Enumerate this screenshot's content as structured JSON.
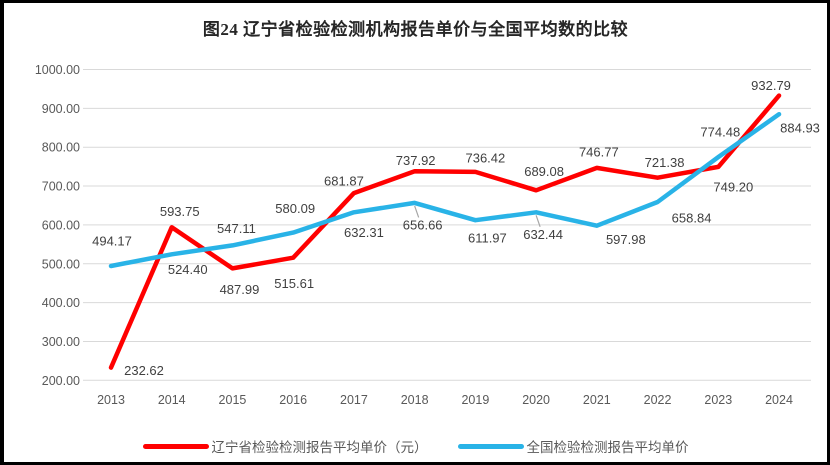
{
  "title": "图24 辽宁省检验检测机构报告单价与全国平均数的比较",
  "chart_data": {
    "type": "line",
    "categories": [
      "2013",
      "2014",
      "2015",
      "2016",
      "2017",
      "2018",
      "2019",
      "2020",
      "2021",
      "2022",
      "2023",
      "2024"
    ],
    "series": [
      {
        "name": "辽宁省检验检测报告平均单价（元）",
        "color": "#FF0000",
        "values": [
          232.62,
          593.75,
          487.99,
          515.61,
          681.87,
          737.92,
          736.42,
          689.08,
          746.77,
          721.38,
          749.2,
          932.79
        ]
      },
      {
        "name": "全国检验检测报告平均单价",
        "color": "#29B3E7",
        "values": [
          494.17,
          524.4,
          547.11,
          580.09,
          632.31,
          656.66,
          611.97,
          632.44,
          597.98,
          658.84,
          774.48,
          884.93
        ]
      }
    ],
    "ylim": [
      200,
      1000
    ],
    "ytick_step": 100,
    "ytick_decimals": 2,
    "grid": true,
    "legend_position": "bottom",
    "data_labels": true
  },
  "colors": {
    "grid": "#D9D9D9",
    "axis_text": "#595959",
    "data_label_text": "#404040",
    "title_text": "#262626",
    "leader_line": "#A6A6A6",
    "frame": "#000000",
    "background": "#FFFFFF"
  }
}
